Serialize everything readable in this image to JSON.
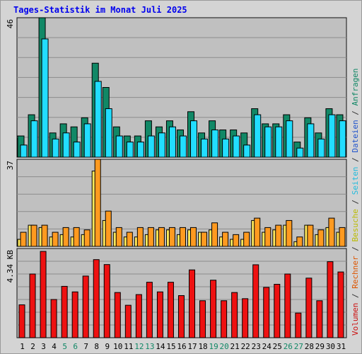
{
  "title": "Tages-Statistik im Monat Juli 2025",
  "legend": {
    "items": [
      {
        "label": "Volumen",
        "color": "#cc1010"
      },
      {
        "label": "Rechner",
        "color": "#dd5500"
      },
      {
        "label": "Besuche",
        "color": "#bbbb00"
      },
      {
        "label": "Seiten",
        "color": "#22bbdd"
      },
      {
        "label": "Dateien",
        "color": "#2255cc"
      },
      {
        "label": "Anfragen",
        "color": "#118866"
      }
    ],
    "separator": " / "
  },
  "colors": {
    "anfragen": "#118866",
    "seiten": "#22ddff",
    "besuche": "#ffe85a",
    "rechner": "#ff9a20",
    "volumen": "#ee1111",
    "plot_bg": "#c0c0c0",
    "weekend_label": "#118866"
  },
  "chart_data": [
    {
      "type": "bar",
      "panel": "top",
      "ylim": [
        0,
        46
      ],
      "y_tick_label": "46",
      "categories": [
        "1",
        "2",
        "3",
        "4",
        "5",
        "6",
        "7",
        "8",
        "9",
        "10",
        "11",
        "12",
        "13",
        "14",
        "15",
        "16",
        "17",
        "18",
        "19",
        "20",
        "21",
        "22",
        "23",
        "24",
        "25",
        "26",
        "27",
        "28",
        "29",
        "30",
        "31"
      ],
      "weekend_days": [
        "5",
        "6",
        "12",
        "13",
        "19",
        "20",
        "26",
        "27"
      ],
      "series": [
        {
          "name": "Anfragen",
          "values": [
            7,
            14,
            46,
            8,
            11,
            10,
            13,
            31,
            23,
            10,
            7,
            7,
            12,
            10,
            12,
            9,
            15,
            8,
            12,
            9,
            9,
            8,
            16,
            11,
            11,
            14,
            5,
            13,
            8,
            16,
            14
          ]
        },
        {
          "name": "Seiten",
          "values": [
            4,
            12,
            39,
            6,
            8,
            5,
            11,
            25,
            16,
            7,
            5,
            5,
            7,
            8,
            10,
            7,
            12,
            6,
            9,
            6,
            7,
            4,
            14,
            10,
            10,
            12,
            3,
            11,
            6,
            14,
            12
          ]
        }
      ]
    },
    {
      "type": "bar",
      "panel": "middle",
      "ylim": [
        0,
        37
      ],
      "y_tick_label": "37",
      "categories": [
        "1",
        "2",
        "3",
        "4",
        "5",
        "6",
        "7",
        "8",
        "9",
        "10",
        "11",
        "12",
        "13",
        "14",
        "15",
        "16",
        "17",
        "18",
        "19",
        "20",
        "21",
        "22",
        "23",
        "24",
        "25",
        "26",
        "27",
        "28",
        "29",
        "30",
        "31"
      ],
      "series": [
        {
          "name": "Besuche",
          "values": [
            3,
            9,
            8,
            4,
            5,
            4,
            5,
            32,
            11,
            6,
            4,
            4,
            5,
            7,
            7,
            5,
            7,
            6,
            7,
            4,
            3,
            3,
            11,
            6,
            7,
            9,
            2,
            9,
            5,
            8,
            6
          ]
        },
        {
          "name": "Rechner",
          "values": [
            6,
            9,
            9,
            6,
            8,
            8,
            7,
            37,
            15,
            8,
            6,
            8,
            8,
            8,
            8,
            8,
            8,
            6,
            10,
            6,
            5,
            6,
            12,
            8,
            9,
            11,
            4,
            9,
            7,
            12,
            8
          ]
        }
      ]
    },
    {
      "type": "bar",
      "panel": "bottom",
      "ylim": [
        0,
        4.34
      ],
      "y_tick_label": "4.34 KB",
      "unit": "KB",
      "categories": [
        "1",
        "2",
        "3",
        "4",
        "5",
        "6",
        "7",
        "8",
        "9",
        "10",
        "11",
        "12",
        "13",
        "14",
        "15",
        "16",
        "17",
        "18",
        "19",
        "20",
        "21",
        "22",
        "23",
        "24",
        "25",
        "26",
        "27",
        "28",
        "29",
        "30",
        "31"
      ],
      "series": [
        {
          "name": "Volumen",
          "values": [
            1.6,
            3.1,
            4.2,
            1.86,
            2.5,
            2.23,
            3.0,
            3.8,
            3.56,
            2.2,
            1.58,
            2.1,
            2.7,
            2.23,
            2.7,
            2.05,
            3.3,
            1.8,
            2.8,
            1.8,
            2.2,
            1.9,
            3.55,
            2.45,
            2.6,
            3.1,
            1.2,
            2.9,
            1.8,
            3.7,
            3.2
          ]
        }
      ]
    }
  ]
}
